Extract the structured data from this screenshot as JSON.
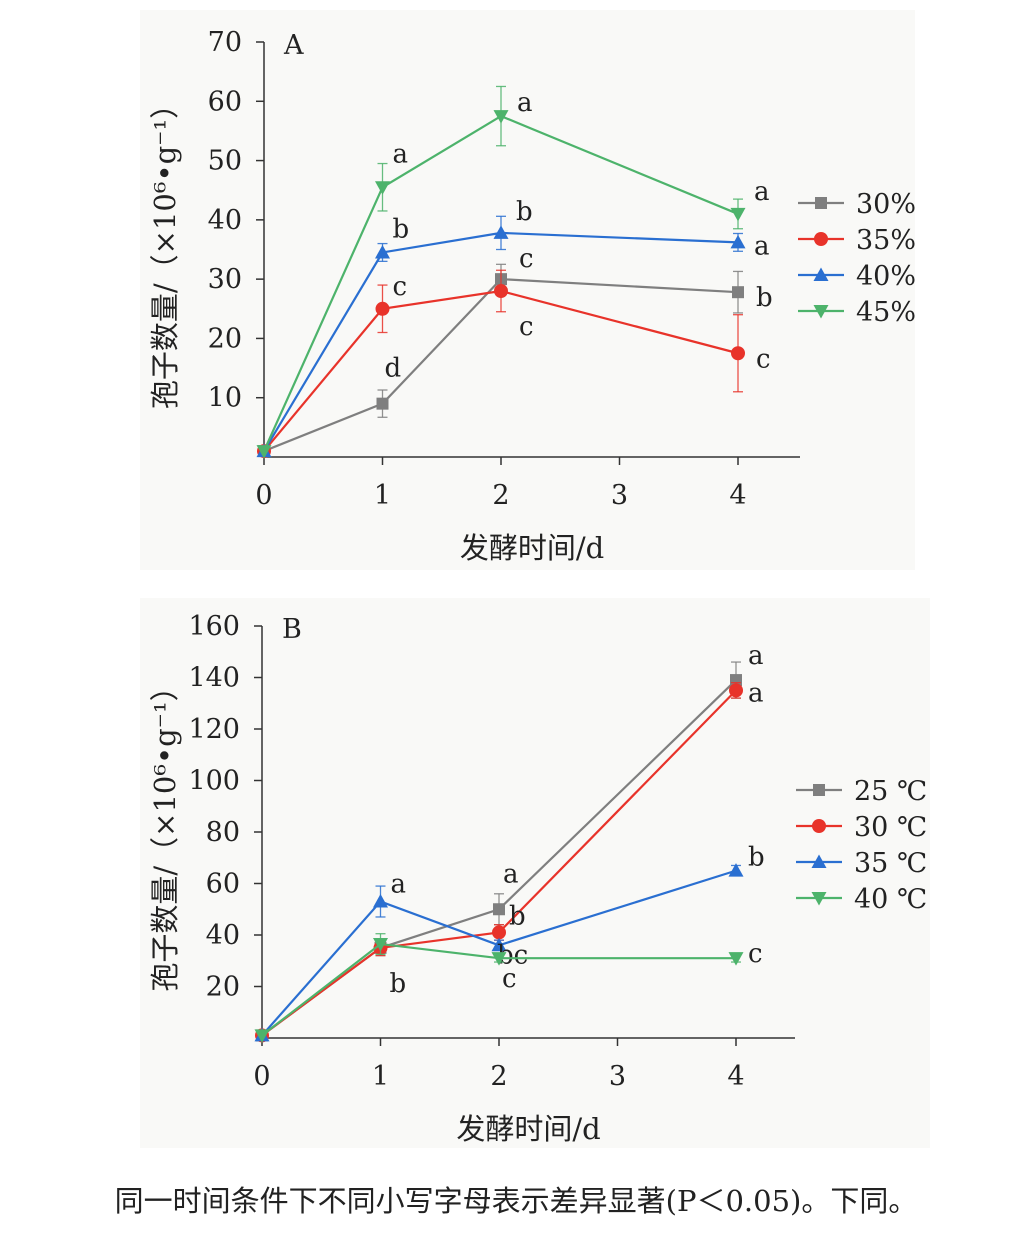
{
  "chart_data": [
    {
      "type": "line",
      "panel_label": "A",
      "xlabel": "发酵时间/d",
      "ylabel": "孢子数量/（×10⁶•g⁻¹）",
      "x": [
        0,
        1,
        2,
        4
      ],
      "xticks": [
        0,
        1,
        2,
        3,
        4
      ],
      "xlim": [
        0,
        4.5
      ],
      "ylim": [
        0,
        70
      ],
      "yticks": [
        10,
        20,
        30,
        40,
        50,
        60,
        70
      ],
      "series": [
        {
          "name": "30%",
          "color": "#7f7f7f",
          "marker": "square",
          "values": [
            1,
            9,
            30,
            27.8
          ],
          "errors": [
            0.5,
            2.3,
            2.5,
            3.5
          ],
          "labels": [
            "",
            "d",
            "c",
            "b"
          ]
        },
        {
          "name": "35%",
          "color": "#e8332a",
          "marker": "circle",
          "values": [
            1,
            25,
            28,
            17.5
          ],
          "errors": [
            0.5,
            4,
            3.5,
            6.5
          ],
          "labels": [
            "",
            "c",
            "c",
            "c"
          ]
        },
        {
          "name": "40%",
          "color": "#2a6fd1",
          "marker": "triangle-up",
          "values": [
            1,
            34.5,
            37.8,
            36.2
          ],
          "errors": [
            0.5,
            1.5,
            2.8,
            1.5
          ],
          "labels": [
            "",
            "b",
            "b",
            "a"
          ]
        },
        {
          "name": "45%",
          "color": "#4db36b",
          "marker": "triangle-down",
          "values": [
            1,
            45.5,
            57.5,
            41
          ],
          "errors": [
            0.5,
            4,
            5,
            2.5
          ],
          "labels": [
            "",
            "a",
            "a",
            "a"
          ]
        }
      ]
    },
    {
      "type": "line",
      "panel_label": "B",
      "xlabel": "发酵时间/d",
      "ylabel": "孢子数量/（×10⁶•g⁻¹）",
      "x": [
        0,
        1,
        2,
        4
      ],
      "xticks": [
        0,
        1,
        2,
        3,
        4
      ],
      "xlim": [
        0,
        4.5
      ],
      "ylim": [
        0,
        160
      ],
      "yticks": [
        20,
        40,
        60,
        80,
        100,
        120,
        140,
        160
      ],
      "series": [
        {
          "name": "25 ℃",
          "color": "#7f7f7f",
          "marker": "square",
          "values": [
            1,
            35,
            50,
            139
          ],
          "errors": [
            0.5,
            3,
            6,
            7
          ],
          "labels": [
            "",
            "b",
            "a",
            "a"
          ]
        },
        {
          "name": "30 ℃",
          "color": "#e8332a",
          "marker": "circle",
          "values": [
            1,
            35,
            41,
            135
          ],
          "errors": [
            0.5,
            3,
            3,
            3
          ],
          "labels": [
            "",
            "",
            "b",
            "a"
          ]
        },
        {
          "name": "35 ℃",
          "color": "#2a6fd1",
          "marker": "triangle-up",
          "values": [
            1,
            53,
            36,
            65
          ],
          "errors": [
            0.5,
            6,
            2,
            2
          ],
          "labels": [
            "",
            "a",
            "bc",
            "b"
          ]
        },
        {
          "name": "40 ℃",
          "color": "#4db36b",
          "marker": "triangle-down",
          "values": [
            1,
            36.5,
            31,
            31
          ],
          "errors": [
            0.5,
            4,
            1.5,
            1.5
          ],
          "labels": [
            "",
            "",
            "c",
            "c"
          ]
        }
      ]
    }
  ],
  "caption": "同一时间条件下不同小写字母表示差异显著(P＜0.05)。下同。"
}
